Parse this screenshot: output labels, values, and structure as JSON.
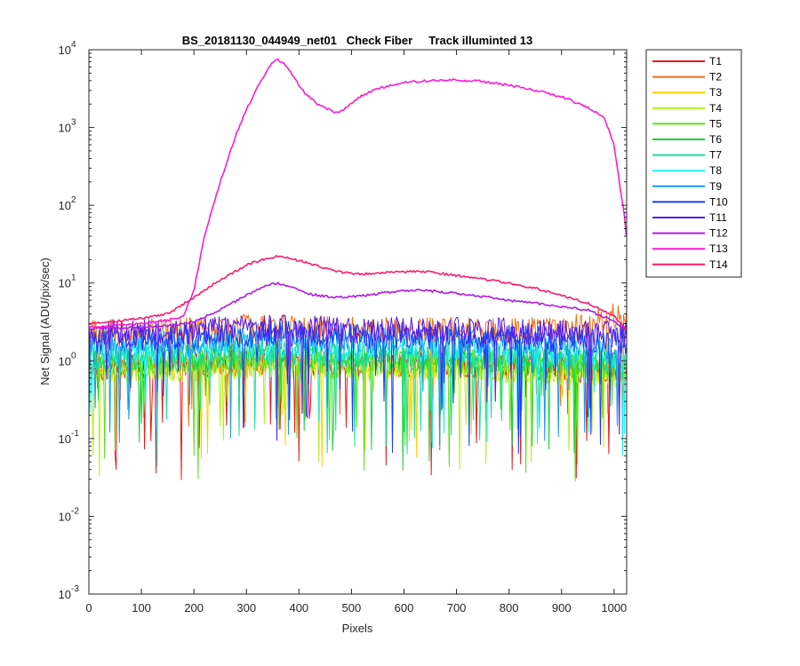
{
  "chart_data": {
    "type": "line",
    "title": "BS_20181130_044949_net01   Check Fiber     Track illuminted 13",
    "xlabel": "Pixels",
    "ylabel": "Net Signal (ADU/pix/sec)",
    "xlim": [
      0,
      1024
    ],
    "ylim": [
      0.001,
      10000
    ],
    "yscale": "log",
    "grid": false,
    "legend_position": "outside-top-right",
    "x_ticks": [
      "0",
      "100",
      "200",
      "300",
      "400",
      "500",
      "600",
      "700",
      "800",
      "900",
      "1000"
    ],
    "x_tick_values": [
      0,
      100,
      200,
      300,
      400,
      500,
      600,
      700,
      800,
      900,
      1000
    ],
    "y_ticks": [
      {
        "base": "10",
        "exp": "-3",
        "value": 0.001
      },
      {
        "base": "10",
        "exp": "-2",
        "value": 0.01
      },
      {
        "base": "10",
        "exp": "-1",
        "value": 0.1
      },
      {
        "base": "10",
        "exp": "0",
        "value": 1
      },
      {
        "base": "10",
        "exp": "1",
        "value": 10
      },
      {
        "base": "10",
        "exp": "2",
        "value": 100
      },
      {
        "base": "10",
        "exp": "3",
        "value": 1000
      },
      {
        "base": "10",
        "exp": "4",
        "value": 10000
      }
    ],
    "series": [
      {
        "name": "T1",
        "color": "#e6191a",
        "noisy": true,
        "x": [
          0,
          100,
          200,
          300,
          360,
          400,
          500,
          600,
          700,
          800,
          900,
          1024
        ],
        "y": [
          0.8,
          0.85,
          0.9,
          0.95,
          1.0,
          0.95,
          0.9,
          0.9,
          0.9,
          0.85,
          0.8,
          0.7
        ]
      },
      {
        "name": "T2",
        "color": "#f07014",
        "noisy": true,
        "x": [
          0,
          100,
          200,
          300,
          360,
          400,
          500,
          600,
          700,
          800,
          900,
          960,
          1000,
          1024
        ],
        "y": [
          2.3,
          2.4,
          2.5,
          2.7,
          2.8,
          2.6,
          2.5,
          2.5,
          2.5,
          2.4,
          2.5,
          3.0,
          3.8,
          4.0
        ]
      },
      {
        "name": "T3",
        "color": "#ffd000",
        "noisy": true,
        "x": [
          0,
          100,
          200,
          300,
          360,
          400,
          500,
          600,
          700,
          800,
          900,
          1024
        ],
        "y": [
          0.75,
          0.8,
          0.85,
          0.9,
          0.95,
          0.9,
          0.85,
          0.85,
          0.85,
          0.8,
          0.75,
          0.65
        ]
      },
      {
        "name": "T4",
        "color": "#b6f01a",
        "noisy": true,
        "x": [
          0,
          100,
          200,
          300,
          360,
          400,
          500,
          600,
          700,
          800,
          900,
          1024
        ],
        "y": [
          0.7,
          0.75,
          0.8,
          0.85,
          0.9,
          0.85,
          0.8,
          0.8,
          0.8,
          0.75,
          0.7,
          0.6
        ]
      },
      {
        "name": "T5",
        "color": "#5ae01a",
        "noisy": true,
        "x": [
          0,
          100,
          200,
          300,
          360,
          400,
          500,
          600,
          700,
          800,
          900,
          1024
        ],
        "y": [
          0.9,
          0.95,
          1.0,
          1.05,
          1.1,
          1.05,
          1.0,
          1.0,
          1.0,
          0.95,
          0.9,
          0.8
        ]
      },
      {
        "name": "T6",
        "color": "#1ad23a",
        "noisy": true,
        "x": [
          0,
          100,
          200,
          300,
          360,
          400,
          500,
          600,
          700,
          800,
          900,
          1024
        ],
        "y": [
          1.0,
          1.05,
          1.1,
          1.15,
          1.2,
          1.15,
          1.1,
          1.1,
          1.1,
          1.05,
          1.0,
          0.9
        ]
      },
      {
        "name": "T7",
        "color": "#1adea0",
        "noisy": true,
        "x": [
          0,
          100,
          200,
          300,
          360,
          400,
          500,
          600,
          700,
          800,
          900,
          1024
        ],
        "y": [
          1.1,
          1.15,
          1.2,
          1.25,
          1.3,
          1.25,
          1.2,
          1.2,
          1.2,
          1.15,
          1.1,
          1.0
        ]
      },
      {
        "name": "T8",
        "color": "#1af0f0",
        "noisy": true,
        "x": [
          0,
          100,
          200,
          300,
          360,
          400,
          500,
          600,
          700,
          800,
          900,
          1024
        ],
        "y": [
          1.3,
          1.35,
          1.4,
          1.5,
          1.55,
          1.5,
          1.4,
          1.4,
          1.4,
          1.35,
          1.3,
          1.2
        ]
      },
      {
        "name": "T9",
        "color": "#1a96f0",
        "noisy": true,
        "x": [
          0,
          100,
          200,
          300,
          360,
          400,
          500,
          600,
          700,
          800,
          900,
          1024
        ],
        "y": [
          1.6,
          1.7,
          1.8,
          1.9,
          2.0,
          1.9,
          1.8,
          1.8,
          1.8,
          1.7,
          1.6,
          1.5
        ]
      },
      {
        "name": "T10",
        "color": "#1a3cf0",
        "noisy": true,
        "x": [
          0,
          100,
          200,
          300,
          360,
          400,
          500,
          600,
          700,
          800,
          900,
          1024
        ],
        "y": [
          1.9,
          2.0,
          2.1,
          2.2,
          2.3,
          2.2,
          2.1,
          2.1,
          2.1,
          2.0,
          1.9,
          1.8
        ]
      },
      {
        "name": "T11",
        "color": "#5a1ae6",
        "noisy": true,
        "x": [
          0,
          100,
          200,
          300,
          360,
          400,
          500,
          600,
          700,
          800,
          900,
          1024
        ],
        "y": [
          2.2,
          2.3,
          2.4,
          2.6,
          2.7,
          2.6,
          2.5,
          2.5,
          2.5,
          2.4,
          2.3,
          2.2
        ]
      },
      {
        "name": "T12",
        "color": "#b01ae6",
        "noisy": false,
        "x": [
          0,
          100,
          150,
          200,
          250,
          300,
          340,
          360,
          380,
          420,
          470,
          520,
          560,
          600,
          640,
          680,
          720,
          760,
          800,
          850,
          900,
          950,
          1000,
          1024
        ],
        "y": [
          2.6,
          2.7,
          2.8,
          3.2,
          4.5,
          7.0,
          9.5,
          10.0,
          9.0,
          7.2,
          6.5,
          6.8,
          7.5,
          8.0,
          8.0,
          7.6,
          7.0,
          6.6,
          6.0,
          5.5,
          5.0,
          4.5,
          3.2,
          2.5
        ]
      },
      {
        "name": "T13",
        "color": "#ff1ad8",
        "noisy": false,
        "x": [
          0,
          100,
          150,
          180,
          200,
          220,
          250,
          280,
          300,
          320,
          340,
          355,
          370,
          390,
          410,
          440,
          460,
          475,
          490,
          520,
          560,
          600,
          650,
          700,
          750,
          800,
          850,
          900,
          950,
          980,
          1000,
          1010,
          1020,
          1024
        ],
        "y": [
          2.7,
          3.0,
          3.3,
          3.8,
          8.0,
          40,
          200,
          800,
          1700,
          3200,
          5500,
          7500,
          7000,
          4500,
          2800,
          1900,
          1650,
          1550,
          1800,
          2600,
          3300,
          3800,
          4000,
          4100,
          3900,
          3500,
          3000,
          2500,
          1800,
          1400,
          600,
          200,
          70,
          35
        ]
      },
      {
        "name": "T14",
        "color": "#ff1a6e",
        "noisy": false,
        "x": [
          0,
          100,
          150,
          200,
          250,
          300,
          340,
          360,
          380,
          420,
          470,
          520,
          560,
          600,
          640,
          680,
          720,
          760,
          800,
          850,
          900,
          950,
          1000,
          1024
        ],
        "y": [
          3.0,
          3.5,
          4.0,
          6.5,
          11,
          17,
          21,
          22,
          21,
          18,
          14,
          13,
          13.5,
          14,
          14,
          13,
          12,
          11,
          10,
          8.5,
          7,
          5.5,
          3.8,
          2.5
        ]
      }
    ]
  }
}
